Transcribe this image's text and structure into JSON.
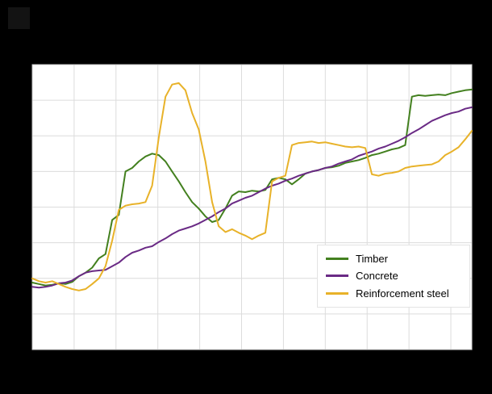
{
  "window": {
    "background_color": "#000000"
  },
  "chart_data": {
    "type": "line",
    "title": "",
    "xlabel": "",
    "ylabel": "",
    "ylim": [
      90,
      130
    ],
    "y_gridline_step": 5,
    "x_gridline_count": 10,
    "grid": true,
    "plot_bg": "#ffffff",
    "grid_color": "#dcdcdc",
    "frame_color": "#c8c8c8",
    "legend_position": "inside-bottom-right",
    "series": [
      {
        "name": "Timber",
        "color": "#43801f",
        "values": [
          99.4,
          99.2,
          99.0,
          99.1,
          99.3,
          99.2,
          99.5,
          100.3,
          100.8,
          101.5,
          102.8,
          103.4,
          108.2,
          108.9,
          115.0,
          115.5,
          116.4,
          117.1,
          117.5,
          117.3,
          116.4,
          115.0,
          113.6,
          112.1,
          110.7,
          109.8,
          108.7,
          107.9,
          108.2,
          109.8,
          111.6,
          112.2,
          112.1,
          112.3,
          112.2,
          112.4,
          113.9,
          114.1,
          113.9,
          113.2,
          113.9,
          114.7,
          115.0,
          115.2,
          115.5,
          115.6,
          115.8,
          116.2,
          116.4,
          116.6,
          116.9,
          117.3,
          117.5,
          117.8,
          118.1,
          118.3,
          118.7,
          125.5,
          125.7,
          125.6,
          125.7,
          125.8,
          125.7,
          126.0,
          126.2,
          126.4,
          126.5
        ]
      },
      {
        "name": "Concrete",
        "color": "#6a2a85",
        "values": [
          98.8,
          98.7,
          98.8,
          99.0,
          99.3,
          99.4,
          99.7,
          100.3,
          100.8,
          101.0,
          101.1,
          101.2,
          101.7,
          102.2,
          103.0,
          103.6,
          103.9,
          104.3,
          104.5,
          105.1,
          105.6,
          106.2,
          106.7,
          107.0,
          107.3,
          107.7,
          108.2,
          108.7,
          109.3,
          109.8,
          110.5,
          110.9,
          111.3,
          111.6,
          112.1,
          112.6,
          113.0,
          113.3,
          113.7,
          114.0,
          114.4,
          114.7,
          115.0,
          115.2,
          115.5,
          115.7,
          116.1,
          116.4,
          116.7,
          117.2,
          117.5,
          117.8,
          118.2,
          118.5,
          118.9,
          119.3,
          119.8,
          120.4,
          120.9,
          121.5,
          122.1,
          122.5,
          122.9,
          123.2,
          123.4,
          123.8,
          124.0
        ]
      },
      {
        "name": "Reinforcement steel",
        "color": "#e8b229",
        "values": [
          100.0,
          99.6,
          99.4,
          99.6,
          99.2,
          98.8,
          98.5,
          98.3,
          98.5,
          99.2,
          100.0,
          101.7,
          105.3,
          109.6,
          110.2,
          110.4,
          110.5,
          110.7,
          113.0,
          119.8,
          125.5,
          127.2,
          127.4,
          126.4,
          123.2,
          120.9,
          116.4,
          110.7,
          107.3,
          106.5,
          106.9,
          106.4,
          106.0,
          105.5,
          106.0,
          106.4,
          113.6,
          114.1,
          114.4,
          118.7,
          119.0,
          119.1,
          119.2,
          119.0,
          119.1,
          118.9,
          118.7,
          118.5,
          118.4,
          118.5,
          118.3,
          114.6,
          114.4,
          114.7,
          114.8,
          115.0,
          115.5,
          115.7,
          115.8,
          115.9,
          116.0,
          116.4,
          117.3,
          117.8,
          118.4,
          119.5,
          120.7
        ]
      }
    ]
  },
  "legend": {
    "items": [
      "Timber",
      "Concrete",
      "Reinforcement steel"
    ]
  }
}
